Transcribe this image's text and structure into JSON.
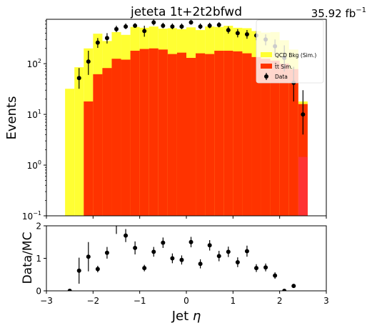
{
  "chart_data": [
    {
      "type": "bar",
      "title": "jeteta  1t+2t2bfwd",
      "lumi": {
        "value": "35.92 fb",
        "exponent": "−1"
      },
      "xlabel": "",
      "ylabel": "Events",
      "yscale": "log",
      "xlim": [
        -3,
        3
      ],
      "ylim": [
        0.1,
        750
      ],
      "yticks": [
        {
          "value": 0.1,
          "base": "10",
          "exp": "−1"
        },
        {
          "value": 1,
          "base": "10",
          "exp": "0"
        },
        {
          "value": 10,
          "base": "10",
          "exp": "1"
        },
        {
          "value": 100,
          "base": "10",
          "exp": "2"
        }
      ],
      "bin_edges": [
        -2.6,
        -2.4,
        -2.2,
        -2.0,
        -1.8,
        -1.6,
        -1.4,
        -1.2,
        -1.0,
        -0.8,
        -0.6,
        -0.4,
        -0.2,
        0.0,
        0.2,
        0.4,
        0.6,
        0.8,
        1.0,
        1.2,
        1.4,
        1.6,
        1.8,
        2.0,
        2.2,
        2.4,
        2.6
      ],
      "legend_position": "top-right",
      "series": [
        {
          "name": "QCD Bkg (Sim.)",
          "color": "#ffff33",
          "kind": "stacked-total",
          "values": [
            32,
            85,
            200,
            390,
            280,
            420,
            370,
            530,
            510,
            540,
            490,
            500,
            480,
            520,
            460,
            540,
            530,
            560,
            510,
            500,
            440,
            410,
            420,
            290,
            190,
            18
          ]
        },
        {
          "name": "t̄t Sim.",
          "color": "#ff3300",
          "kind": "bar",
          "values": [
            0,
            0,
            18,
            62,
            82,
            125,
            120,
            180,
            195,
            200,
            190,
            155,
            165,
            130,
            160,
            155,
            180,
            180,
            175,
            160,
            135,
            125,
            115,
            100,
            78,
            16
          ]
        },
        {
          "name": "",
          "color": "#ff3333",
          "kind": "bar-range",
          "range": [
            2.4,
            2.6
          ],
          "values": [
            1.45
          ]
        },
        {
          "name": "Data",
          "color": "#000000",
          "kind": "errorbar",
          "x": [
            -2.3,
            -2.1,
            -1.9,
            -1.7,
            -1.5,
            -1.3,
            -1.1,
            -0.9,
            -0.7,
            -0.5,
            -0.3,
            -0.1,
            0.1,
            0.3,
            0.5,
            0.7,
            0.9,
            1.1,
            1.3,
            1.5,
            1.7,
            1.9,
            2.1,
            2.3,
            2.5
          ],
          "values": [
            52,
            110,
            260,
            320,
            480,
            540,
            560,
            440,
            650,
            560,
            540,
            540,
            650,
            540,
            560,
            580,
            460,
            400,
            380,
            360,
            300,
            220,
            130,
            42,
            10
          ],
          "err_low": [
            20,
            50,
            55,
            70,
            60,
            60,
            50,
            100,
            80,
            60,
            60,
            60,
            60,
            60,
            60,
            60,
            70,
            70,
            70,
            70,
            70,
            70,
            60,
            24,
            6
          ],
          "err_high": [
            30,
            70,
            60,
            80,
            80,
            80,
            70,
            120,
            100,
            80,
            80,
            80,
            80,
            80,
            80,
            80,
            80,
            80,
            80,
            80,
            80,
            80,
            100,
            45,
            20
          ]
        }
      ]
    },
    {
      "type": "scatter",
      "xlabel": "Jet η",
      "xlabel_text": "Jet ",
      "xlabel_symbol": "η",
      "ylabel": "Data/MC",
      "xlim": [
        -3,
        3
      ],
      "ylim": [
        0,
        2
      ],
      "xticks": [
        "−3",
        "−2",
        "−1",
        "0",
        "1",
        "2",
        "3"
      ],
      "yticks": [
        "0",
        "1",
        "2"
      ],
      "series": [
        {
          "name": "Data/MC",
          "x": [
            -2.5,
            -2.3,
            -2.1,
            -1.9,
            -1.7,
            -1.5,
            -1.3,
            -1.1,
            -0.9,
            -0.7,
            -0.5,
            -0.3,
            -0.1,
            0.1,
            0.3,
            0.5,
            0.7,
            0.9,
            1.1,
            1.3,
            1.5,
            1.7,
            1.9,
            2.1,
            2.3
          ],
          "values": [
            0.0,
            0.62,
            1.05,
            0.67,
            1.17,
            2.05,
            1.7,
            1.32,
            0.7,
            1.2,
            1.48,
            1.0,
            0.95,
            1.5,
            0.83,
            1.4,
            1.07,
            1.2,
            0.88,
            1.22,
            0.7,
            0.72,
            0.47,
            0.0,
            0.15
          ],
          "err": [
            0.0,
            0.4,
            0.45,
            0.1,
            0.18,
            0.3,
            0.2,
            0.2,
            0.1,
            0.15,
            0.16,
            0.15,
            0.14,
            0.16,
            0.14,
            0.16,
            0.16,
            0.16,
            0.15,
            0.17,
            0.12,
            0.12,
            0.1,
            0.0,
            0.06
          ]
        }
      ]
    }
  ]
}
